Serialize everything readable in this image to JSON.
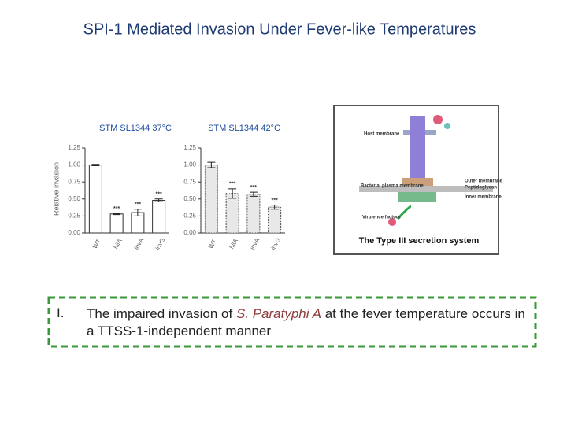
{
  "title": "SPI-1 Mediated Invasion Under Fever-like Temperatures",
  "chart_data": [
    {
      "type": "bar",
      "title": "STM SL1344 37°C",
      "y_label": "Relative invasion",
      "categories": [
        "WT",
        "hilA",
        "invA",
        "invG"
      ],
      "values": [
        1.0,
        0.28,
        0.3,
        0.48
      ],
      "errors": [
        0.01,
        0.01,
        0.05,
        0.02
      ],
      "significance": [
        null,
        "***",
        "***",
        "***"
      ],
      "color": "#ffffff",
      "ylim": [
        0,
        1.25
      ],
      "yticks": [
        {
          "value": 0,
          "label": "0.00"
        },
        {
          "value": 0.25,
          "label": "0.25"
        },
        {
          "value": 0.5,
          "label": "0.50"
        },
        {
          "value": 0.75,
          "label": "0.75"
        },
        {
          "value": 1,
          "label": "1.00"
        },
        {
          "value": 1.25,
          "label": "1.25"
        }
      ]
    },
    {
      "type": "bar",
      "title": "STM SL1344 42°C",
      "categories": [
        "WT",
        "hilA",
        "invA",
        "invG"
      ],
      "values": [
        1.0,
        0.58,
        0.57,
        0.38
      ],
      "errors": [
        0.04,
        0.07,
        0.03,
        0.03
      ],
      "significance": [
        null,
        "***",
        "***",
        "***"
      ],
      "color": "#e8e8e8",
      "ylim": [
        0,
        1.25
      ],
      "yticks": [
        {
          "value": 0,
          "label": "0.00"
        },
        {
          "value": 0.25,
          "label": "0.25"
        },
        {
          "value": 0.5,
          "label": "0.50"
        },
        {
          "value": 0.75,
          "label": "0.75"
        },
        {
          "value": 1,
          "label": "1.00"
        },
        {
          "value": 1.25,
          "label": "1.25"
        }
      ]
    }
  ],
  "diagram": {
    "caption": "The Type III secretion system",
    "labels": [
      "Host membrane",
      "Bacterial plasma membrane",
      "Outer membrane",
      "Peptidoglycan",
      "Inner membrane",
      "Virulence factors"
    ]
  },
  "box": {
    "number": "I.",
    "text_before": "The impaired invasion of ",
    "species": "S. Paratyphi A",
    "text_after": " at the fever temperature occurs in a TTSS-1-independent manner"
  }
}
